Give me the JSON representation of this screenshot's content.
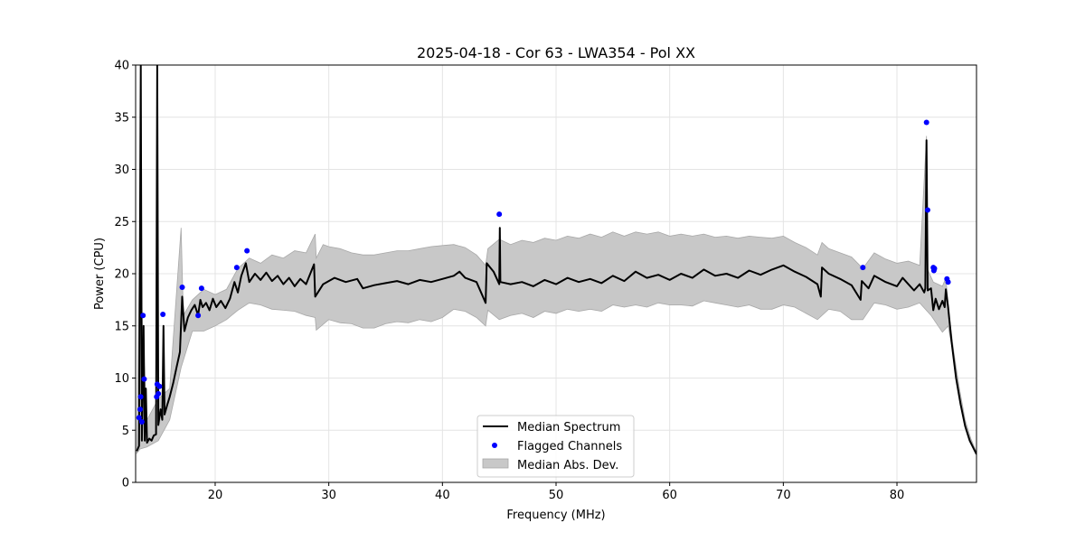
{
  "chart_data": {
    "type": "line",
    "title": "2025-04-18 - Cor 63 - LWA354 - Pol XX",
    "xlabel": "Frequency (MHz)",
    "ylabel": "Power (CPU)",
    "xlim": [
      13,
      87
    ],
    "ylim": [
      0,
      40
    ],
    "xticks": [
      20,
      30,
      40,
      50,
      60,
      70,
      80
    ],
    "yticks": [
      0,
      5,
      10,
      15,
      20,
      25,
      30,
      35,
      40
    ],
    "grid": true,
    "legend_position": "bottom-center",
    "legend": [
      {
        "label": "Median Spectrum",
        "kind": "line",
        "color": "#000000"
      },
      {
        "label": "Flagged Channels",
        "kind": "marker",
        "color": "#0000ff"
      },
      {
        "label": "Median Abs. Dev.",
        "kind": "patch",
        "color": "#c8c8c8"
      }
    ],
    "series": [
      {
        "name": "Median Spectrum",
        "color": "#000000",
        "points": [
          [
            13.1,
            3.0
          ],
          [
            13.3,
            3.5
          ],
          [
            13.45,
            40
          ],
          [
            13.55,
            4.0
          ],
          [
            13.7,
            15.0
          ],
          [
            13.8,
            4.0
          ],
          [
            13.9,
            9.0
          ],
          [
            14.0,
            3.8
          ],
          [
            14.2,
            4.2
          ],
          [
            14.4,
            4.0
          ],
          [
            14.6,
            4.5
          ],
          [
            14.8,
            4.6
          ],
          [
            14.9,
            40
          ],
          [
            15.0,
            5.5
          ],
          [
            15.2,
            7.0
          ],
          [
            15.35,
            6.0
          ],
          [
            15.45,
            15.0
          ],
          [
            15.55,
            6.5
          ],
          [
            15.8,
            7.5
          ],
          [
            16.0,
            8.2
          ],
          [
            16.3,
            9.5
          ],
          [
            16.6,
            11.0
          ],
          [
            16.9,
            12.5
          ],
          [
            17.1,
            17.8
          ],
          [
            17.3,
            14.5
          ],
          [
            17.6,
            15.8
          ],
          [
            17.9,
            16.5
          ],
          [
            18.2,
            17.0
          ],
          [
            18.5,
            16.0
          ],
          [
            18.7,
            17.5
          ],
          [
            18.9,
            16.8
          ],
          [
            19.2,
            17.2
          ],
          [
            19.5,
            16.5
          ],
          [
            19.8,
            17.6
          ],
          [
            20.1,
            16.8
          ],
          [
            20.5,
            17.4
          ],
          [
            20.9,
            16.7
          ],
          [
            21.3,
            17.6
          ],
          [
            21.7,
            19.2
          ],
          [
            22.0,
            18.2
          ],
          [
            22.3,
            19.8
          ],
          [
            22.7,
            21.0
          ],
          [
            23.0,
            19.2
          ],
          [
            23.5,
            20.0
          ],
          [
            24.0,
            19.4
          ],
          [
            24.5,
            20.1
          ],
          [
            25.0,
            19.3
          ],
          [
            25.5,
            19.8
          ],
          [
            26.0,
            19.0
          ],
          [
            26.5,
            19.6
          ],
          [
            27.0,
            18.8
          ],
          [
            27.5,
            19.5
          ],
          [
            28.0,
            19.0
          ],
          [
            28.7,
            20.9
          ],
          [
            28.8,
            17.8
          ],
          [
            29.5,
            19.0
          ],
          [
            30.5,
            19.6
          ],
          [
            31.5,
            19.2
          ],
          [
            32.5,
            19.5
          ],
          [
            33.0,
            18.6
          ],
          [
            34.0,
            18.9
          ],
          [
            35.0,
            19.1
          ],
          [
            36.0,
            19.3
          ],
          [
            37.0,
            19.0
          ],
          [
            38.0,
            19.4
          ],
          [
            39.0,
            19.2
          ],
          [
            40.0,
            19.5
          ],
          [
            41.0,
            19.8
          ],
          [
            41.5,
            20.2
          ],
          [
            42.0,
            19.6
          ],
          [
            43.0,
            19.2
          ],
          [
            43.8,
            17.2
          ],
          [
            43.9,
            21.0
          ],
          [
            44.5,
            20.2
          ],
          [
            45.0,
            19.0
          ],
          [
            45.05,
            24.4
          ],
          [
            45.1,
            19.2
          ],
          [
            46.0,
            19.0
          ],
          [
            47.0,
            19.2
          ],
          [
            48.0,
            18.8
          ],
          [
            49.0,
            19.4
          ],
          [
            50.0,
            19.0
          ],
          [
            51.0,
            19.6
          ],
          [
            52.0,
            19.2
          ],
          [
            53.0,
            19.5
          ],
          [
            54.0,
            19.1
          ],
          [
            55.0,
            19.8
          ],
          [
            56.0,
            19.3
          ],
          [
            57.0,
            20.2
          ],
          [
            58.0,
            19.6
          ],
          [
            59.0,
            19.9
          ],
          [
            60.0,
            19.4
          ],
          [
            61.0,
            20.0
          ],
          [
            62.0,
            19.6
          ],
          [
            63.0,
            20.4
          ],
          [
            64.0,
            19.8
          ],
          [
            65.0,
            20.0
          ],
          [
            66.0,
            19.6
          ],
          [
            67.0,
            20.3
          ],
          [
            68.0,
            19.9
          ],
          [
            69.0,
            20.4
          ],
          [
            70.0,
            20.8
          ],
          [
            71.0,
            20.2
          ],
          [
            72.0,
            19.7
          ],
          [
            73.0,
            19.0
          ],
          [
            73.3,
            17.8
          ],
          [
            73.4,
            20.6
          ],
          [
            74.0,
            20.0
          ],
          [
            75.0,
            19.5
          ],
          [
            76.0,
            18.9
          ],
          [
            76.8,
            17.5
          ],
          [
            76.9,
            19.3
          ],
          [
            77.5,
            18.6
          ],
          [
            78.0,
            19.8
          ],
          [
            79.0,
            19.2
          ],
          [
            80.0,
            18.8
          ],
          [
            80.5,
            19.6
          ],
          [
            81.0,
            19.0
          ],
          [
            81.5,
            18.4
          ],
          [
            82.0,
            19.0
          ],
          [
            82.4,
            18.2
          ],
          [
            82.5,
            18.6
          ],
          [
            82.6,
            32.8
          ],
          [
            82.7,
            18.4
          ],
          [
            83.0,
            18.6
          ],
          [
            83.2,
            16.5
          ],
          [
            83.4,
            17.6
          ],
          [
            83.7,
            16.6
          ],
          [
            84.0,
            17.4
          ],
          [
            84.2,
            16.8
          ],
          [
            84.3,
            18.5
          ],
          [
            84.5,
            16.8
          ],
          [
            84.8,
            13.5
          ],
          [
            85.2,
            10.0
          ],
          [
            85.6,
            7.5
          ],
          [
            86.0,
            5.4
          ],
          [
            86.4,
            4.0
          ],
          [
            87.0,
            2.7
          ]
        ]
      }
    ],
    "mad_band": {
      "name": "Median Abs. Dev.",
      "color": "#c8c8c8",
      "upper": [
        [
          13.1,
          3.2
        ],
        [
          13.4,
          27.0
        ],
        [
          13.6,
          15.0
        ],
        [
          14.0,
          6.0
        ],
        [
          15.0,
          8.0
        ],
        [
          16.0,
          9.0
        ],
        [
          17.0,
          24.4
        ],
        [
          17.2,
          16.0
        ],
        [
          18.0,
          17.5
        ],
        [
          19.0,
          18.5
        ],
        [
          20.0,
          18.0
        ],
        [
          21.0,
          18.5
        ],
        [
          22.0,
          20.5
        ],
        [
          23.0,
          21.5
        ],
        [
          24.0,
          21.0
        ],
        [
          25.0,
          21.8
        ],
        [
          26.0,
          21.5
        ],
        [
          27.0,
          22.2
        ],
        [
          28.0,
          22.0
        ],
        [
          28.8,
          23.8
        ],
        [
          28.9,
          21.5
        ],
        [
          29.5,
          22.8
        ],
        [
          30.0,
          22.6
        ],
        [
          31.0,
          22.4
        ],
        [
          32.0,
          22.0
        ],
        [
          33.0,
          21.8
        ],
        [
          34.0,
          21.8
        ],
        [
          35.0,
          22.0
        ],
        [
          36.0,
          22.2
        ],
        [
          37.0,
          22.2
        ],
        [
          38.0,
          22.4
        ],
        [
          39.0,
          22.6
        ],
        [
          40.0,
          22.7
        ],
        [
          41.0,
          22.8
        ],
        [
          42.0,
          22.5
        ],
        [
          43.0,
          21.8
        ],
        [
          43.8,
          20.8
        ],
        [
          44.0,
          22.4
        ],
        [
          45.0,
          23.3
        ],
        [
          46.0,
          22.8
        ],
        [
          47.0,
          23.2
        ],
        [
          48.0,
          23.0
        ],
        [
          49.0,
          23.4
        ],
        [
          50.0,
          23.2
        ],
        [
          51.0,
          23.6
        ],
        [
          52.0,
          23.4
        ],
        [
          53.0,
          23.8
        ],
        [
          54.0,
          23.5
        ],
        [
          55.0,
          24.0
        ],
        [
          56.0,
          23.6
        ],
        [
          57.0,
          24.0
        ],
        [
          58.0,
          23.8
        ],
        [
          59.0,
          24.0
        ],
        [
          60.0,
          23.6
        ],
        [
          61.0,
          23.8
        ],
        [
          62.0,
          23.6
        ],
        [
          63.0,
          23.8
        ],
        [
          64.0,
          23.5
        ],
        [
          65.0,
          23.6
        ],
        [
          66.0,
          23.4
        ],
        [
          67.0,
          23.6
        ],
        [
          68.0,
          23.5
        ],
        [
          69.0,
          23.4
        ],
        [
          70.0,
          23.6
        ],
        [
          71.0,
          23.0
        ],
        [
          72.0,
          22.5
        ],
        [
          73.0,
          21.8
        ],
        [
          73.4,
          23.0
        ],
        [
          74.0,
          22.4
        ],
        [
          75.0,
          22.0
        ],
        [
          76.0,
          21.6
        ],
        [
          77.0,
          20.5
        ],
        [
          78.0,
          22.0
        ],
        [
          79.0,
          21.4
        ],
        [
          80.0,
          21.0
        ],
        [
          81.0,
          21.2
        ],
        [
          82.0,
          20.8
        ],
        [
          82.6,
          33.2
        ],
        [
          82.7,
          20.4
        ],
        [
          83.2,
          19.2
        ],
        [
          84.0,
          18.8
        ],
        [
          84.3,
          19.6
        ],
        [
          84.6,
          16.0
        ],
        [
          85.0,
          12.5
        ],
        [
          85.5,
          9.0
        ],
        [
          86.0,
          6.0
        ],
        [
          86.5,
          4.2
        ],
        [
          87.0,
          2.9
        ]
      ],
      "lower": [
        [
          13.1,
          2.8
        ],
        [
          13.4,
          3.2
        ],
        [
          14.0,
          3.4
        ],
        [
          15.0,
          4.0
        ],
        [
          16.0,
          6.0
        ],
        [
          17.0,
          11.0
        ],
        [
          18.0,
          14.5
        ],
        [
          19.0,
          14.5
        ],
        [
          20.0,
          15.0
        ],
        [
          21.0,
          15.6
        ],
        [
          22.0,
          16.5
        ],
        [
          23.0,
          17.2
        ],
        [
          24.0,
          17.0
        ],
        [
          25.0,
          16.6
        ],
        [
          26.0,
          16.5
        ],
        [
          27.0,
          16.4
        ],
        [
          28.0,
          16.0
        ],
        [
          28.8,
          15.8
        ],
        [
          28.9,
          14.6
        ],
        [
          30.0,
          15.6
        ],
        [
          31.0,
          15.3
        ],
        [
          32.0,
          15.2
        ],
        [
          33.0,
          14.8
        ],
        [
          34.0,
          14.8
        ],
        [
          35.0,
          15.2
        ],
        [
          36.0,
          15.4
        ],
        [
          37.0,
          15.3
        ],
        [
          38.0,
          15.6
        ],
        [
          39.0,
          15.4
        ],
        [
          40.0,
          15.8
        ],
        [
          41.0,
          16.6
        ],
        [
          42.0,
          16.4
        ],
        [
          43.0,
          15.8
        ],
        [
          43.8,
          15.0
        ],
        [
          44.0,
          16.5
        ],
        [
          45.0,
          15.6
        ],
        [
          46.0,
          16.0
        ],
        [
          47.0,
          16.2
        ],
        [
          48.0,
          15.8
        ],
        [
          49.0,
          16.4
        ],
        [
          50.0,
          16.2
        ],
        [
          51.0,
          16.6
        ],
        [
          52.0,
          16.4
        ],
        [
          53.0,
          16.6
        ],
        [
          54.0,
          16.4
        ],
        [
          55.0,
          17.0
        ],
        [
          56.0,
          16.8
        ],
        [
          57.0,
          17.0
        ],
        [
          58.0,
          16.8
        ],
        [
          59.0,
          17.2
        ],
        [
          60.0,
          17.0
        ],
        [
          61.0,
          17.0
        ],
        [
          62.0,
          16.9
        ],
        [
          63.0,
          17.4
        ],
        [
          64.0,
          17.2
        ],
        [
          65.0,
          17.0
        ],
        [
          66.0,
          16.8
        ],
        [
          67.0,
          17.0
        ],
        [
          68.0,
          16.6
        ],
        [
          69.0,
          16.6
        ],
        [
          70.0,
          17.0
        ],
        [
          71.0,
          16.8
        ],
        [
          72.0,
          16.2
        ],
        [
          73.0,
          15.6
        ],
        [
          74.0,
          16.6
        ],
        [
          75.0,
          16.4
        ],
        [
          76.0,
          15.6
        ],
        [
          77.0,
          15.6
        ],
        [
          78.0,
          17.2
        ],
        [
          79.0,
          17.0
        ],
        [
          80.0,
          16.6
        ],
        [
          81.0,
          16.8
        ],
        [
          82.0,
          17.2
        ],
        [
          83.0,
          16.0
        ],
        [
          84.0,
          14.4
        ],
        [
          84.5,
          15.0
        ],
        [
          85.0,
          12.0
        ],
        [
          85.5,
          8.5
        ],
        [
          86.0,
          5.5
        ],
        [
          86.5,
          4.0
        ],
        [
          87.0,
          2.6
        ]
      ]
    },
    "flagged_channels": [
      [
        13.3,
        6.2
      ],
      [
        13.4,
        7.0
      ],
      [
        13.45,
        8.2
      ],
      [
        13.55,
        5.8
      ],
      [
        13.65,
        16.0
      ],
      [
        13.75,
        9.9
      ],
      [
        14.85,
        8.2
      ],
      [
        14.9,
        9.4
      ],
      [
        15.0,
        8.5
      ],
      [
        15.1,
        9.2
      ],
      [
        15.4,
        16.1
      ],
      [
        17.1,
        18.7
      ],
      [
        18.5,
        16.0
      ],
      [
        18.8,
        18.6
      ],
      [
        21.9,
        20.6
      ],
      [
        22.8,
        22.2
      ],
      [
        45.0,
        25.7
      ],
      [
        77.0,
        20.6
      ],
      [
        82.6,
        34.5
      ],
      [
        82.7,
        26.1
      ],
      [
        83.2,
        20.6
      ],
      [
        83.25,
        20.3
      ],
      [
        83.3,
        20.5
      ],
      [
        84.4,
        19.5
      ],
      [
        84.5,
        19.2
      ]
    ]
  }
}
